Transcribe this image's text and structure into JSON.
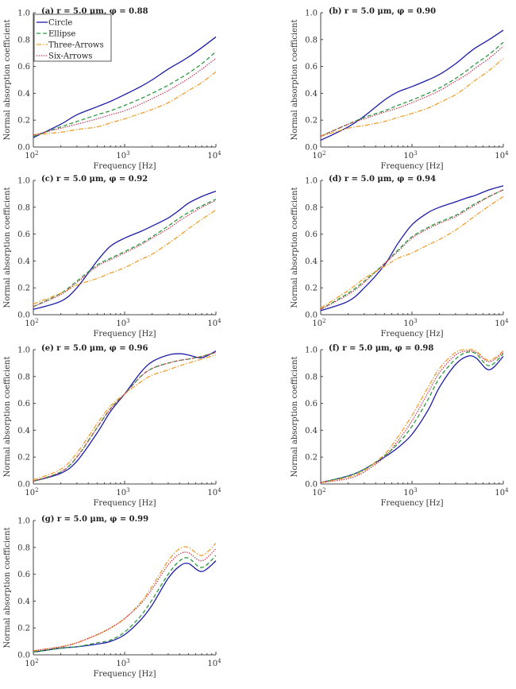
{
  "chart_data": {
    "type": "line",
    "xscale": "log",
    "xlabel": "Frequency [Hz]",
    "ylabel": "Normal absorption coefficient",
    "xlim": [
      100,
      10000
    ],
    "ylim": [
      0,
      1.0
    ],
    "yticks": [
      "0.0",
      "0.2",
      "0.4",
      "0.6",
      "0.8",
      "1.0"
    ],
    "xticks": [
      {
        "base": "10",
        "exp": "2"
      },
      {
        "base": "10",
        "exp": "3"
      },
      {
        "base": "10",
        "exp": "4"
      }
    ],
    "grid": false,
    "legend": {
      "placement": "top-left",
      "panel": 0,
      "entries": [
        "Circle",
        "Ellipse",
        "Three-Arrows",
        "Six-Arrows"
      ]
    },
    "series_styles": [
      {
        "name": "Circle",
        "color": "#1c1ca8",
        "dash": "solid"
      },
      {
        "name": "Ellipse",
        "color": "#2e9b40",
        "dash": "dashed"
      },
      {
        "name": "Three-Arrows",
        "color": "#f0a030",
        "dash": "dashdot"
      },
      {
        "name": "Six-Arrows",
        "color": "#c8304e",
        "dash": "dotted"
      }
    ],
    "x": [
      100,
      200,
      300,
      500,
      700,
      1000,
      1500,
      2000,
      3000,
      4000,
      5000,
      7000,
      10000
    ],
    "panels": [
      {
        "title": "(a) r = 5.0 μm, φ = 0.88",
        "series": [
          {
            "name": "Circle",
            "values": [
              0.07,
              0.17,
              0.24,
              0.3,
              0.34,
              0.39,
              0.45,
              0.5,
              0.58,
              0.63,
              0.67,
              0.74,
              0.82
            ]
          },
          {
            "name": "Ellipse",
            "values": [
              0.08,
              0.15,
              0.19,
              0.24,
              0.27,
              0.31,
              0.36,
              0.4,
              0.46,
              0.51,
              0.55,
              0.62,
              0.71
            ]
          },
          {
            "name": "Three-Arrows",
            "values": [
              0.09,
              0.11,
              0.13,
              0.15,
              0.18,
              0.21,
              0.25,
              0.28,
              0.33,
              0.38,
              0.42,
              0.48,
              0.56
            ]
          },
          {
            "name": "Six-Arrows",
            "values": [
              0.09,
              0.14,
              0.17,
              0.21,
              0.24,
              0.27,
              0.32,
              0.36,
              0.42,
              0.47,
              0.51,
              0.58,
              0.66
            ]
          }
        ]
      },
      {
        "title": "(b) r = 5.0 μm, φ = 0.90",
        "series": [
          {
            "name": "Circle",
            "values": [
              0.05,
              0.15,
              0.23,
              0.35,
              0.41,
              0.45,
              0.5,
              0.54,
              0.62,
              0.69,
              0.74,
              0.8,
              0.87
            ]
          },
          {
            "name": "Ellipse",
            "values": [
              0.08,
              0.17,
              0.22,
              0.27,
              0.31,
              0.35,
              0.4,
              0.44,
              0.51,
              0.57,
              0.62,
              0.69,
              0.78
            ]
          },
          {
            "name": "Three-Arrows",
            "values": [
              0.08,
              0.14,
              0.16,
              0.19,
              0.22,
              0.25,
              0.29,
              0.33,
              0.39,
              0.45,
              0.5,
              0.57,
              0.66
            ]
          },
          {
            "name": "Six-Arrows",
            "values": [
              0.08,
              0.17,
              0.21,
              0.26,
              0.29,
              0.33,
              0.38,
              0.42,
              0.49,
              0.54,
              0.59,
              0.66,
              0.75
            ]
          }
        ]
      },
      {
        "title": "(c) r = 5.0 μm, φ = 0.92",
        "series": [
          {
            "name": "Circle",
            "values": [
              0.04,
              0.1,
              0.2,
              0.4,
              0.51,
              0.57,
              0.62,
              0.66,
              0.72,
              0.78,
              0.83,
              0.88,
              0.92
            ]
          },
          {
            "name": "Ellipse",
            "values": [
              0.06,
              0.16,
              0.25,
              0.37,
              0.42,
              0.47,
              0.53,
              0.58,
              0.66,
              0.72,
              0.76,
              0.81,
              0.86
            ]
          },
          {
            "name": "Three-Arrows",
            "values": [
              0.08,
              0.16,
              0.22,
              0.27,
              0.31,
              0.35,
              0.41,
              0.45,
              0.53,
              0.59,
              0.64,
              0.71,
              0.78
            ]
          },
          {
            "name": "Six-Arrows",
            "values": [
              0.06,
              0.15,
              0.24,
              0.36,
              0.41,
              0.46,
              0.52,
              0.57,
              0.64,
              0.7,
              0.74,
              0.8,
              0.85
            ]
          }
        ]
      },
      {
        "title": "(d) r = 5.0 μm, φ = 0.94",
        "series": [
          {
            "name": "Circle",
            "values": [
              0.03,
              0.1,
              0.2,
              0.37,
              0.53,
              0.67,
              0.76,
              0.8,
              0.84,
              0.87,
              0.89,
              0.93,
              0.96
            ]
          },
          {
            "name": "Ellipse",
            "values": [
              0.04,
              0.16,
              0.25,
              0.38,
              0.48,
              0.58,
              0.65,
              0.69,
              0.74,
              0.79,
              0.83,
              0.88,
              0.93
            ]
          },
          {
            "name": "Three-Arrows",
            "values": [
              0.05,
              0.18,
              0.27,
              0.36,
              0.42,
              0.46,
              0.52,
              0.56,
              0.63,
              0.69,
              0.74,
              0.81,
              0.88
            ]
          },
          {
            "name": "Six-Arrows",
            "values": [
              0.04,
              0.15,
              0.24,
              0.38,
              0.47,
              0.57,
              0.64,
              0.68,
              0.73,
              0.78,
              0.82,
              0.88,
              0.93
            ]
          }
        ]
      },
      {
        "title": "(e) r = 5.0 μm, φ = 0.96",
        "series": [
          {
            "name": "Circle",
            "values": [
              0.02,
              0.08,
              0.17,
              0.38,
              0.54,
              0.67,
              0.83,
              0.91,
              0.96,
              0.97,
              0.96,
              0.94,
              0.99
            ]
          },
          {
            "name": "Ellipse",
            "values": [
              0.02,
              0.09,
              0.2,
              0.42,
              0.56,
              0.67,
              0.8,
              0.86,
              0.9,
              0.92,
              0.93,
              0.95,
              0.98
            ]
          },
          {
            "name": "Three-Arrows",
            "values": [
              0.03,
              0.11,
              0.23,
              0.45,
              0.58,
              0.67,
              0.76,
              0.81,
              0.85,
              0.88,
              0.9,
              0.93,
              0.96
            ]
          },
          {
            "name": "Six-Arrows",
            "values": [
              0.02,
              0.09,
              0.2,
              0.42,
              0.56,
              0.67,
              0.8,
              0.86,
              0.9,
              0.92,
              0.93,
              0.95,
              0.98
            ]
          }
        ]
      },
      {
        "title": "(f) r = 5.0 μm, φ = 0.98",
        "series": [
          {
            "name": "Circle",
            "values": [
              0.01,
              0.06,
              0.11,
              0.2,
              0.27,
              0.37,
              0.55,
              0.72,
              0.89,
              0.95,
              0.94,
              0.85,
              0.95
            ]
          },
          {
            "name": "Ellipse",
            "values": [
              0.01,
              0.06,
              0.11,
              0.21,
              0.3,
              0.43,
              0.63,
              0.79,
              0.93,
              0.98,
              0.97,
              0.88,
              0.97
            ]
          },
          {
            "name": "Three-Arrows",
            "values": [
              0.01,
              0.05,
              0.1,
              0.22,
              0.35,
              0.51,
              0.72,
              0.86,
              0.98,
              1.0,
              0.99,
              0.92,
              0.99
            ]
          },
          {
            "name": "Six-Arrows",
            "values": [
              0.01,
              0.04,
              0.09,
              0.2,
              0.32,
              0.47,
              0.68,
              0.83,
              0.96,
              0.99,
              0.98,
              0.91,
              0.98
            ]
          }
        ]
      },
      {
        "title": "(g) r = 5.0 μm, φ = 0.99",
        "series": [
          {
            "name": "Circle",
            "values": [
              0.02,
              0.05,
              0.06,
              0.08,
              0.1,
              0.15,
              0.26,
              0.37,
              0.57,
              0.66,
              0.68,
              0.62,
              0.7
            ]
          },
          {
            "name": "Ellipse",
            "values": [
              0.02,
              0.05,
              0.06,
              0.09,
              0.11,
              0.17,
              0.29,
              0.41,
              0.6,
              0.7,
              0.72,
              0.65,
              0.74
            ]
          },
          {
            "name": "Three-Arrows",
            "values": [
              0.03,
              0.06,
              0.09,
              0.15,
              0.2,
              0.27,
              0.39,
              0.51,
              0.7,
              0.79,
              0.8,
              0.74,
              0.83
            ]
          },
          {
            "name": "Six-Arrows",
            "values": [
              0.03,
              0.06,
              0.09,
              0.15,
              0.2,
              0.27,
              0.38,
              0.49,
              0.67,
              0.75,
              0.76,
              0.7,
              0.79
            ]
          }
        ]
      }
    ]
  }
}
